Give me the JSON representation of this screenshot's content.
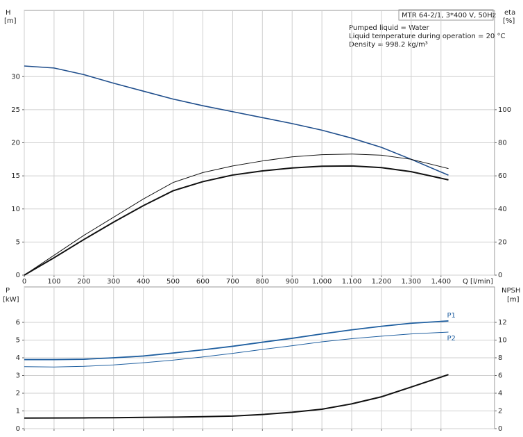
{
  "chart_data": [
    {
      "type": "line",
      "title": "MTR 64-2/1, 3*400 V, 50Hz",
      "annotations": [
        "Pumped liquid = Water",
        "Liquid temperature during operation = 20 °C",
        "Density = 998.2 kg/m³"
      ],
      "ylabel": "H",
      "ylabel_unit": "[m]",
      "y2label": "eta",
      "y2label_unit": "[%]",
      "xlabel": "Q [l/min]",
      "grid": true,
      "xlim": [
        0,
        1580
      ],
      "xticks": [
        0,
        100,
        200,
        300,
        400,
        500,
        600,
        700,
        800,
        900,
        {
          "value": 1000,
          "label": "1,000"
        },
        {
          "value": 1100,
          "label": "1,100"
        },
        {
          "value": 1200,
          "label": "1,200"
        },
        {
          "value": 1300,
          "label": "1,300"
        },
        {
          "value": 1400,
          "label": "1,400"
        }
      ],
      "ylim": [
        0,
        40
      ],
      "yticks": [
        0,
        5,
        10,
        15,
        20,
        25,
        30
      ],
      "y2lim": [
        0,
        160
      ],
      "y2ticks": [
        0,
        20,
        40,
        60,
        80,
        100
      ],
      "x": [
        0,
        100,
        200,
        300,
        400,
        500,
        600,
        700,
        800,
        900,
        1000,
        1100,
        1200,
        1300,
        1425
      ],
      "series": [
        {
          "color": "#1f4e8c",
          "width": 1.6,
          "values": [
            31.6,
            31.3,
            30.3,
            29.0,
            27.8,
            26.6,
            25.6,
            24.7,
            23.8,
            22.9,
            21.9,
            20.7,
            19.3,
            17.5,
            15.1
          ]
        },
        {
          "color": "#111111",
          "width": 1,
          "axis": "y2",
          "values": [
            0,
            12,
            24,
            35,
            46,
            56,
            62,
            66,
            69,
            71.5,
            72.8,
            73.2,
            72.5,
            70,
            64.4
          ]
        },
        {
          "color": "#111111",
          "width": 2,
          "axis": "y2",
          "values": [
            0,
            10.5,
            21.5,
            32,
            42,
            51,
            56.5,
            60.5,
            63,
            64.8,
            65.8,
            66,
            65,
            62.5,
            57.6
          ]
        }
      ]
    },
    {
      "type": "line",
      "ylabel": "P",
      "ylabel_unit": "[kW]",
      "y2label": "NPSH",
      "y2label_unit": "[m]",
      "grid": true,
      "xlim": [
        0,
        1580
      ],
      "xticks": [
        0,
        100,
        200,
        300,
        400,
        500,
        600,
        700,
        800,
        900,
        1000,
        1100,
        1200,
        1300,
        1400
      ],
      "ylim": [
        0,
        8
      ],
      "yticks": [
        0,
        1,
        2,
        3,
        4,
        5,
        6
      ],
      "y2lim": [
        0,
        16
      ],
      "y2ticks": [
        0,
        2,
        4,
        6,
        8,
        10,
        12
      ],
      "x": [
        0,
        100,
        200,
        300,
        400,
        500,
        600,
        700,
        800,
        900,
        1000,
        1100,
        1200,
        1300,
        1425
      ],
      "series": [
        {
          "name": "P1",
          "color": "#1f5fa0",
          "width": 1.8,
          "values": [
            3.9,
            3.9,
            3.92,
            4.0,
            4.1,
            4.27,
            4.45,
            4.65,
            4.88,
            5.1,
            5.35,
            5.58,
            5.78,
            5.95,
            6.08
          ]
        },
        {
          "name": "P2",
          "color": "#1f5fa0",
          "width": 1,
          "values": [
            3.5,
            3.48,
            3.52,
            3.6,
            3.72,
            3.87,
            4.05,
            4.25,
            4.47,
            4.68,
            4.9,
            5.08,
            5.22,
            5.35,
            5.45
          ]
        },
        {
          "color": "#111111",
          "width": 2,
          "axis": "y2",
          "values": [
            1.2,
            1.21,
            1.22,
            1.24,
            1.27,
            1.3,
            1.35,
            1.42,
            1.6,
            1.85,
            2.2,
            2.8,
            3.6,
            4.7,
            6.1
          ]
        }
      ]
    }
  ]
}
